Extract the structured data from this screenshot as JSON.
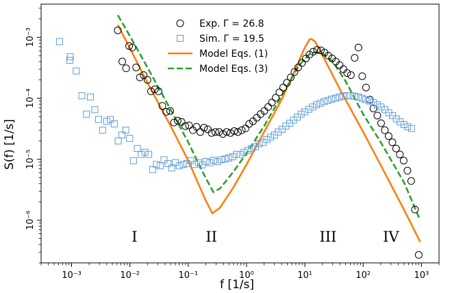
{
  "chart_data": {
    "type": "scatter",
    "xlabel": "f [1/s]",
    "ylabel": "S(f) [1/s]",
    "x_scale": "log",
    "y_scale": "log",
    "xlim": [
      0.0003,
      2000
    ],
    "ylim": [
      2e-07,
      0.0035
    ],
    "x_ticks": [
      {
        "value": 0.001,
        "label": "10⁻³"
      },
      {
        "value": 0.01,
        "label": "10⁻²"
      },
      {
        "value": 0.1,
        "label": "10⁻¹"
      },
      {
        "value": 1,
        "label": "10⁰"
      },
      {
        "value": 10,
        "label": "10¹"
      },
      {
        "value": 100,
        "label": "10²"
      },
      {
        "value": 1000,
        "label": "10³"
      }
    ],
    "y_ticks": [
      {
        "value": 1e-06,
        "label": "10⁻⁶"
      },
      {
        "value": 1e-05,
        "label": "10⁻⁵"
      },
      {
        "value": 0.0001,
        "label": "10⁻⁴"
      },
      {
        "value": 0.001,
        "label": "10⁻³"
      }
    ],
    "grid": false,
    "legend_position": "top-center",
    "region_labels": [
      {
        "label": "I",
        "x": 0.012,
        "y": 5.5e-07
      },
      {
        "label": "II",
        "x": 0.25,
        "y": 5.5e-07
      },
      {
        "label": "III",
        "x": 25,
        "y": 5.5e-07
      },
      {
        "label": "IV",
        "x": 300,
        "y": 5.5e-07
      }
    ],
    "series": [
      {
        "name": "Exp. Γ = 26.8",
        "kind": "marker",
        "marker": "circle",
        "color": "#000000",
        "x": [
          0.0062,
          0.0074,
          0.0086,
          0.0097,
          0.011,
          0.0128,
          0.0148,
          0.0172,
          0.02,
          0.023,
          0.0267,
          0.031,
          0.036,
          0.042,
          0.049,
          0.057,
          0.066,
          0.077,
          0.089,
          0.103,
          0.12,
          0.139,
          0.161,
          0.187,
          0.217,
          0.252,
          0.292,
          0.339,
          0.393,
          0.456,
          0.53,
          0.615,
          0.713,
          0.828,
          0.96,
          1.11,
          1.29,
          1.5,
          1.74,
          2.02,
          2.35,
          2.72,
          3.16,
          3.66,
          4.25,
          4.93,
          5.72,
          6.64,
          7.7,
          8.94,
          10.4,
          12.0,
          13.9,
          16.2,
          18.8,
          21.8,
          25.3,
          29.3,
          34.0,
          39.5,
          45.8,
          53.1,
          61.6,
          71.5,
          83.0,
          96.3,
          112,
          130,
          150,
          175,
          203,
          235,
          273,
          317,
          367,
          426,
          495,
          574,
          666,
          773,
          897
        ],
        "y": [
          0.0013,
          0.0004,
          0.00031,
          0.00072,
          0.00068,
          0.00032,
          0.00022,
          0.00024,
          0.0002,
          0.00013,
          0.00014,
          0.00013,
          7.5e-05,
          6e-05,
          6.2e-05,
          4e-05,
          4.3e-05,
          4.1e-05,
          3.5e-05,
          3.6e-05,
          3e-05,
          3.4e-05,
          2.8e-05,
          3.3e-05,
          3.1e-05,
          2.7e-05,
          2.8e-05,
          2.8e-05,
          2.6e-05,
          2.8e-05,
          2.7e-05,
          2.9e-05,
          2.8e-05,
          3e-05,
          3.2e-05,
          3.8e-05,
          4.2e-05,
          4.8e-05,
          5.5e-05,
          6.2e-05,
          7.2e-05,
          8.5e-05,
          0.000102,
          0.000125,
          0.00015,
          0.00018,
          0.00022,
          0.00027,
          0.00032,
          0.00038,
          0.00045,
          0.00052,
          0.00058,
          0.00062,
          0.00061,
          0.00056,
          0.0005,
          0.00045,
          0.0004,
          0.00035,
          0.0003,
          0.00026,
          0.00024,
          0.00046,
          0.00068,
          0.00023,
          0.00015,
          9.5e-05,
          6.8e-05,
          5.2e-05,
          3.9e-05,
          3e-05,
          2.4e-05,
          1.9e-05,
          1.5e-05,
          1.2e-05,
          9.5e-06,
          6.5e-06,
          4.4e-06,
          1.5e-06,
          2.7e-07
        ]
      },
      {
        "name": "Sim. Γ = 19.5",
        "kind": "marker",
        "marker": "square",
        "color": "#5b9bd5",
        "x": [
          0.00062,
          0.00093,
          0.00095,
          0.0012,
          0.0015,
          0.0018,
          0.0021,
          0.0025,
          0.0029,
          0.0034,
          0.004,
          0.0046,
          0.0054,
          0.0063,
          0.0073,
          0.0085,
          0.0099,
          0.0115,
          0.0134,
          0.0156,
          0.0181,
          0.021,
          0.0245,
          0.0285,
          0.033,
          0.0385,
          0.045,
          0.052,
          0.06,
          0.07,
          0.082,
          0.095,
          0.11,
          0.128,
          0.15,
          0.174,
          0.202,
          0.235,
          0.273,
          0.317,
          0.368,
          0.428,
          0.497,
          0.578,
          0.671,
          0.78,
          0.906,
          1.05,
          1.22,
          1.42,
          1.65,
          1.92,
          2.23,
          2.59,
          3.01,
          3.5,
          4.07,
          4.73,
          5.5,
          6.39,
          7.43,
          8.63,
          10.0,
          11.7,
          13.6,
          15.8,
          18.3,
          21.3,
          24.8,
          28.8,
          33.5,
          38.9,
          45.2,
          52.5,
          61.0,
          70.9,
          82.4,
          95.7,
          111,
          129,
          150,
          175,
          203,
          236,
          274,
          318,
          370,
          430,
          500,
          580,
          675
        ],
        "y": [
          0.00085,
          0.00042,
          0.00048,
          0.00028,
          0.00011,
          5.5e-05,
          0.000105,
          6.5e-05,
          4.5e-05,
          3e-05,
          4.2e-05,
          4.5e-05,
          3.8e-05,
          2e-05,
          2.5e-05,
          3e-05,
          2.2e-05,
          9.5e-06,
          1.5e-05,
          1.2e-05,
          1.3e-05,
          1.2e-05,
          6.8e-06,
          8.2e-06,
          7.8e-06,
          9.8e-06,
          8.5e-06,
          7.2e-06,
          8.8e-06,
          7.8e-06,
          8.2e-06,
          8.5e-06,
          9.5e-06,
          8.2e-06,
          8.8e-06,
          8.1e-06,
          9.2e-06,
          8.8e-06,
          9.6e-06,
          9.1e-06,
          9.8e-06,
          1.01e-05,
          1.05e-05,
          1.1e-05,
          1.2e-05,
          1.2e-05,
          1.3e-05,
          1.4e-05,
          1.5e-05,
          1.6e-05,
          1.8e-05,
          1.9e-05,
          2.1e-05,
          2.3e-05,
          2.5e-05,
          2.8e-05,
          3.1e-05,
          3.5e-05,
          3.9e-05,
          4.4e-05,
          4.9e-05,
          5.5e-05,
          6e-05,
          6.6e-05,
          7.2e-05,
          7.8e-05,
          8.3e-05,
          8.8e-05,
          9.2e-05,
          9.7e-05,
          0.0001,
          0.000105,
          0.000108,
          0.00011,
          0.00011,
          0.000108,
          0.000105,
          0.0001,
          9.5e-05,
          9e-05,
          8.5e-05,
          7.8e-05,
          7.2e-05,
          6.5e-05,
          5.8e-05,
          5.2e-05,
          4.6e-05,
          4.1e-05,
          3.7e-05,
          3.4e-05,
          3.2e-05
        ]
      },
      {
        "name": "Model Eqs. (1)",
        "kind": "line",
        "style": "solid",
        "color": "#ff7f0e",
        "x": [
          0.0062,
          0.01,
          0.02,
          0.05,
          0.1,
          0.2,
          0.26,
          0.35,
          0.6,
          1,
          2,
          4,
          7,
          10,
          12,
          13,
          15,
          20,
          40,
          100,
          200,
          500,
          950
        ],
        "y": [
          0.0016,
          0.00066,
          0.00018,
          3.5e-05,
          9.5e-06,
          2.1e-06,
          1.3e-06,
          1.6e-06,
          3.5e-06,
          8.2e-06,
          2.8e-05,
          9.5e-05,
          0.00031,
          0.00068,
          0.00092,
          0.00094,
          0.00085,
          0.00051,
          0.00014,
          2.8e-05,
          8e-06,
          1.5e-06,
          4.4e-07
        ]
      },
      {
        "name": "Model Eqs. (3)",
        "kind": "line",
        "style": "dashed",
        "color": "#2ca02c",
        "x": [
          0.0062,
          0.01,
          0.02,
          0.05,
          0.1,
          0.2,
          0.27,
          0.35,
          0.6,
          1,
          2,
          4,
          8,
          12,
          15,
          20,
          30,
          50,
          100,
          200,
          500,
          950
        ],
        "y": [
          0.0023,
          0.00105,
          0.00032,
          6.5e-05,
          1.9e-05,
          4.9e-06,
          2.9e-06,
          3.3e-06,
          6.3e-06,
          1.25e-05,
          3.5e-05,
          0.00011,
          0.00035,
          0.00053,
          0.00057,
          0.00055,
          0.0004,
          0.00019,
          5.5e-05,
          1.9e-05,
          4.2e-06,
          1e-06
        ]
      }
    ]
  }
}
